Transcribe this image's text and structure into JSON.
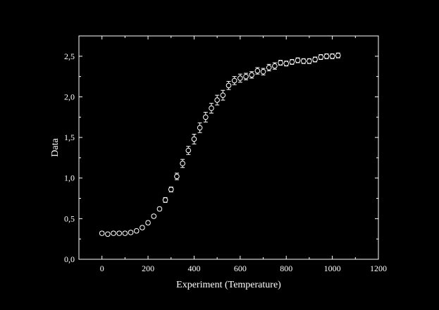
{
  "colors": {
    "background": "#000000",
    "foreground": "#ffffff"
  },
  "chart_data": {
    "type": "scatter",
    "title": "",
    "xlabel": "Experiment (Temperature)",
    "ylabel": "Data",
    "xlim": [
      -100,
      1200
    ],
    "ylim": [
      0,
      2.75
    ],
    "x_ticks": [
      0,
      200,
      400,
      600,
      800,
      1000,
      1200
    ],
    "x_tick_labels": [
      "0",
      "200",
      "400",
      "600",
      "800",
      "1000",
      "1200"
    ],
    "y_ticks": [
      0,
      0.5,
      1.0,
      1.5,
      2.0,
      2.5
    ],
    "y_tick_labels": [
      "0,0",
      "0,5",
      "1,0",
      "1,5",
      "2,0",
      "2,5"
    ],
    "grid": false,
    "legend": "none",
    "marker": "open-circle",
    "error_bars": true,
    "series": [
      {
        "x": [
          0,
          25,
          50,
          75,
          100,
          125,
          150,
          175,
          200,
          225,
          250,
          275,
          300,
          325,
          350,
          375,
          400,
          425,
          450,
          475,
          500,
          525,
          550,
          575,
          600,
          625,
          650,
          675,
          700,
          725,
          750,
          775,
          800,
          825,
          850,
          875,
          900,
          925,
          950,
          975,
          1000,
          1025
        ],
        "y": [
          0.32,
          0.31,
          0.32,
          0.32,
          0.32,
          0.33,
          0.35,
          0.39,
          0.45,
          0.53,
          0.62,
          0.73,
          0.86,
          1.02,
          1.18,
          1.34,
          1.48,
          1.62,
          1.75,
          1.86,
          1.96,
          2.02,
          2.14,
          2.2,
          2.23,
          2.25,
          2.27,
          2.32,
          2.31,
          2.36,
          2.38,
          2.42,
          2.41,
          2.43,
          2.45,
          2.44,
          2.44,
          2.46,
          2.49,
          2.5,
          2.5,
          2.51
        ],
        "err": [
          0.02,
          0.02,
          0.02,
          0.02,
          0.02,
          0.02,
          0.02,
          0.02,
          0.02,
          0.02,
          0.02,
          0.03,
          0.03,
          0.04,
          0.05,
          0.05,
          0.06,
          0.06,
          0.06,
          0.06,
          0.06,
          0.06,
          0.05,
          0.05,
          0.05,
          0.04,
          0.04,
          0.04,
          0.04,
          0.04,
          0.04,
          0.03,
          0.03,
          0.03,
          0.03,
          0.03,
          0.03,
          0.03,
          0.03,
          0.03,
          0.03,
          0.03
        ]
      }
    ]
  }
}
